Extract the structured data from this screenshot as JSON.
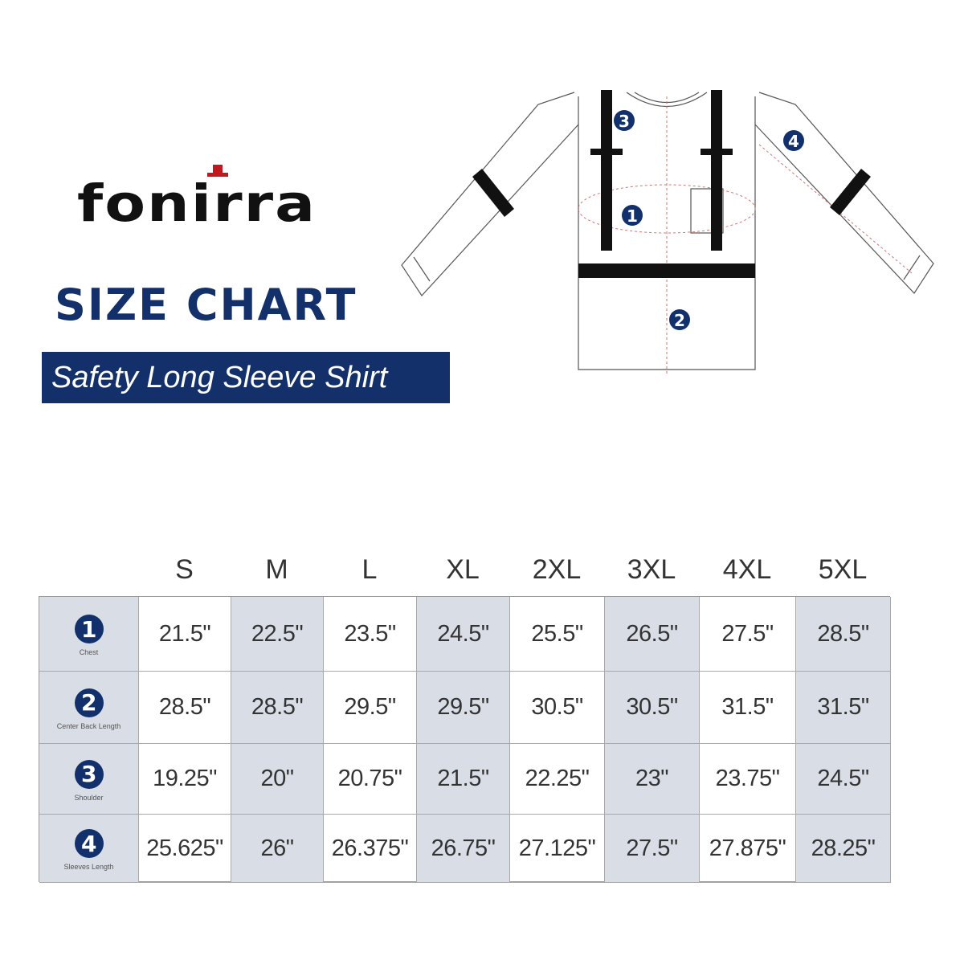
{
  "brand": {
    "logo": "Fonirra",
    "accent": "#13306b"
  },
  "title": "SIZE CHART",
  "subtitle": "Safety Long Sleeve Shirt",
  "diagram_markers": [
    "1",
    "2",
    "3",
    "4"
  ],
  "table": {
    "sizes": [
      "S",
      "M",
      "L",
      "XL",
      "2XL",
      "3XL",
      "4XL",
      "5XL"
    ],
    "rows": [
      {
        "num": "1",
        "label": "Chest",
        "values": [
          "21.5\"",
          "22.5\"",
          "23.5\"",
          "24.5\"",
          "25.5\"",
          "26.5\"",
          "27.5\"",
          "28.5\""
        ]
      },
      {
        "num": "2",
        "label": "Center Back Length",
        "values": [
          "28.5\"",
          "28.5\"",
          "29.5\"",
          "29.5\"",
          "30.5\"",
          "30.5\"",
          "31.5\"",
          "31.5\""
        ]
      },
      {
        "num": "3",
        "label": "Shoulder",
        "values": [
          "19.25\"",
          "20\"",
          "20.75\"",
          "21.5\"",
          "22.25\"",
          "23\"",
          "23.75\"",
          "24.5\""
        ]
      },
      {
        "num": "4",
        "label": "Sleeves Length",
        "values": [
          "25.625\"",
          "26\"",
          "26.375\"",
          "26.75\"",
          "27.125\"",
          "27.5\"",
          "27.875\"",
          "28.25\""
        ]
      }
    ]
  }
}
